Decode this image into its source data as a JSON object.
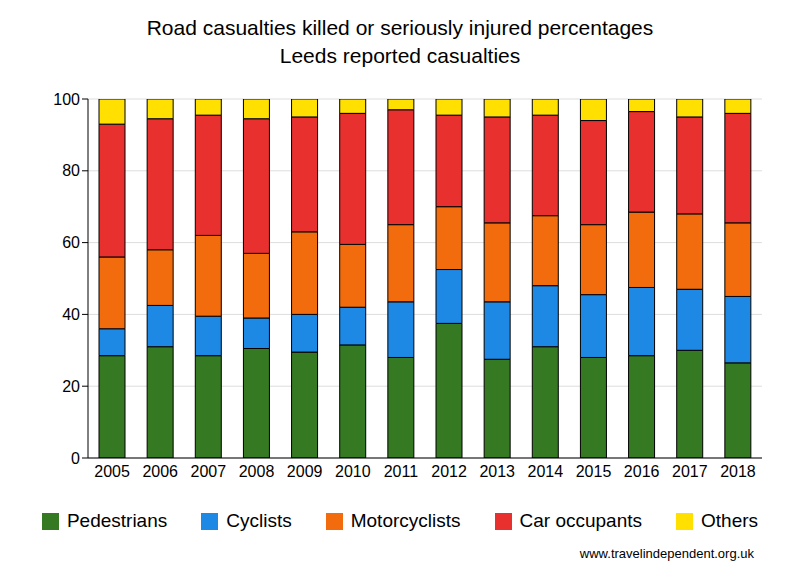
{
  "chart_data": {
    "type": "bar",
    "title": "Road casualties killed or seriously injured percentages",
    "subtitle": "Leeds reported casualties",
    "annotations": [
      "www.travelindependent.org.uk"
    ],
    "categories": [
      "2005",
      "2006",
      "2007",
      "2008",
      "2009",
      "2010",
      "2011",
      "2012",
      "2013",
      "2014",
      "2015",
      "2016",
      "2017",
      "2018"
    ],
    "series": [
      {
        "name": "Pedestrians",
        "color": "#357a22",
        "values": [
          28.5,
          31,
          28.5,
          30.5,
          29.5,
          31.5,
          28,
          37.5,
          27.5,
          31,
          28,
          28.5,
          30,
          26.5
        ]
      },
      {
        "name": "Cyclists",
        "color": "#1e88e5",
        "values": [
          7.5,
          11.5,
          11,
          8.5,
          10.5,
          10.5,
          15.5,
          15,
          16,
          17,
          17.5,
          19,
          17,
          18.5
        ]
      },
      {
        "name": "Motorcyclists",
        "color": "#f26c0d",
        "values": [
          20,
          15.5,
          22.5,
          18,
          23,
          17.5,
          21.5,
          17.5,
          22,
          19.5,
          19.5,
          21,
          21,
          20.5
        ]
      },
      {
        "name": "Car occupants",
        "color": "#e8302e",
        "values": [
          37,
          36.5,
          33.5,
          37.5,
          32,
          36.5,
          32,
          25.5,
          29.5,
          28,
          29,
          28,
          27,
          30.5
        ]
      },
      {
        "name": "Others",
        "color": "#ffe000",
        "values": [
          7,
          5.5,
          4.5,
          5.5,
          5,
          4,
          3,
          4.5,
          5,
          4.5,
          6,
          3.5,
          5,
          4
        ]
      }
    ],
    "ylim": [
      0,
      100
    ],
    "yticks": [
      0,
      20,
      40,
      60,
      80,
      100
    ],
    "grid": true,
    "stacked": true,
    "legend": "bottom"
  }
}
